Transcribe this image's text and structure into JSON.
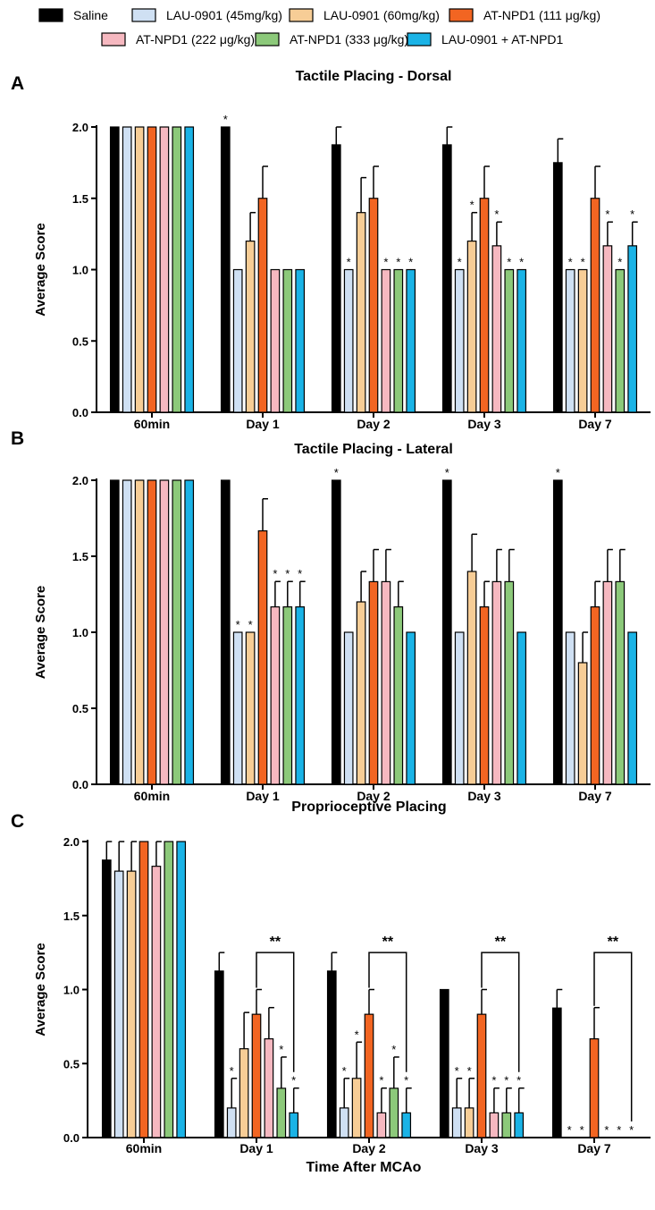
{
  "legend": {
    "entries": [
      {
        "label": "Saline",
        "color": "#000000"
      },
      {
        "label": "LAU-0901 (45mg/kg)",
        "color": "#cfe0f3"
      },
      {
        "label": "LAU-0901 (60mg/kg)",
        "color": "#f7cd96"
      },
      {
        "label": "AT-NPD1 (111 μg/kg)",
        "color": "#f26522"
      },
      {
        "label": "AT-NPD1 (222 μg/kg)",
        "color": "#f6b8c0"
      },
      {
        "label": "AT-NPD1 (333 μg/kg)",
        "color": "#8cc97a"
      },
      {
        "label": "LAU-0901 + AT-NPD1",
        "color": "#1ab3e6"
      }
    ]
  },
  "x_axis_title": "Time After MCAo",
  "chart_data": [
    {
      "type": "bar",
      "panel": "A",
      "title": "Tactile Placing - Dorsal",
      "ylabel": "Average Score",
      "xlabel": "",
      "ylim": [
        0,
        2.0
      ],
      "yticks": [
        "0.0",
        "0.5",
        "1.0",
        "1.5",
        "2.0"
      ],
      "categories": [
        "60min",
        "Day 1",
        "Day 2",
        "Day 3",
        "Day 7"
      ],
      "series": [
        {
          "name": "Saline",
          "values": [
            2.0,
            2.0,
            1.875,
            1.875,
            1.75
          ],
          "errors": [
            0,
            0,
            0.125,
            0.125,
            0.167
          ],
          "stars": [
            0,
            1,
            0,
            0,
            0
          ]
        },
        {
          "name": "LAU-0901 (45mg/kg)",
          "values": [
            2.0,
            1.0,
            1.0,
            1.0,
            1.0
          ],
          "errors": [
            0,
            0,
            0,
            0,
            0
          ],
          "stars": [
            0,
            0,
            1,
            1,
            1
          ]
        },
        {
          "name": "LAU-0901 (60mg/kg)",
          "values": [
            2.0,
            1.2,
            1.4,
            1.2,
            1.0
          ],
          "errors": [
            0,
            0.2,
            0.245,
            0.2,
            0
          ],
          "stars": [
            0,
            0,
            0,
            1,
            1
          ]
        },
        {
          "name": "AT-NPD1 (111 μg/kg)",
          "values": [
            2.0,
            1.5,
            1.5,
            1.5,
            1.5
          ],
          "errors": [
            0,
            0.224,
            0.224,
            0.224,
            0.224
          ],
          "stars": [
            0,
            0,
            0,
            0,
            0
          ]
        },
        {
          "name": "AT-NPD1 (222 μg/kg)",
          "values": [
            2.0,
            1.0,
            1.0,
            1.167,
            1.167
          ],
          "errors": [
            0,
            0,
            0,
            0.167,
            0.167
          ],
          "stars": [
            0,
            0,
            1,
            1,
            1
          ]
        },
        {
          "name": "AT-NPD1 (333 μg/kg)",
          "values": [
            2.0,
            1.0,
            1.0,
            1.0,
            1.0
          ],
          "errors": [
            0,
            0,
            0,
            0,
            0
          ],
          "stars": [
            0,
            0,
            1,
            1,
            1
          ]
        },
        {
          "name": "LAU-0901 + AT-NPD1",
          "values": [
            2.0,
            1.0,
            1.0,
            1.0,
            1.167
          ],
          "errors": [
            0,
            0,
            0,
            0,
            0.167
          ],
          "stars": [
            0,
            0,
            1,
            1,
            1
          ]
        }
      ],
      "brackets": []
    },
    {
      "type": "bar",
      "panel": "B",
      "title": "Tactile Placing - Lateral",
      "ylabel": "Average Score",
      "xlabel": "",
      "ylim": [
        0,
        2.0
      ],
      "yticks": [
        "0.0",
        "0.5",
        "1.0",
        "1.5",
        "2.0"
      ],
      "categories": [
        "60min",
        "Day 1",
        "Day 2",
        "Day 3",
        "Day 7"
      ],
      "series": [
        {
          "name": "Saline",
          "values": [
            2.0,
            2.0,
            2.0,
            2.0,
            2.0
          ],
          "errors": [
            0,
            0,
            0,
            0,
            0
          ],
          "stars": [
            0,
            0,
            1,
            1,
            1
          ]
        },
        {
          "name": "LAU-0901 (45mg/kg)",
          "values": [
            2.0,
            1.0,
            1.0,
            1.0,
            1.0
          ],
          "errors": [
            0,
            0,
            0,
            0,
            0
          ],
          "stars": [
            0,
            1,
            0,
            0,
            0
          ]
        },
        {
          "name": "LAU-0901 (60mg/kg)",
          "values": [
            2.0,
            1.0,
            1.2,
            1.4,
            0.8
          ],
          "errors": [
            0,
            0,
            0.2,
            0.245,
            0.2
          ],
          "stars": [
            0,
            1,
            0,
            0,
            0
          ]
        },
        {
          "name": "AT-NPD1 (111 μg/kg)",
          "values": [
            2.0,
            1.667,
            1.333,
            1.167,
            1.167
          ],
          "errors": [
            0,
            0.211,
            0.211,
            0.167,
            0.167
          ],
          "stars": [
            0,
            0,
            0,
            0,
            0
          ]
        },
        {
          "name": "AT-NPD1 (222 μg/kg)",
          "values": [
            2.0,
            1.167,
            1.333,
            1.333,
            1.333
          ],
          "errors": [
            0,
            0.167,
            0.211,
            0.211,
            0.211
          ],
          "stars": [
            0,
            1,
            0,
            0,
            0
          ]
        },
        {
          "name": "AT-NPD1 (333 μg/kg)",
          "values": [
            2.0,
            1.167,
            1.167,
            1.333,
            1.333
          ],
          "errors": [
            0,
            0.167,
            0.167,
            0.211,
            0.211
          ],
          "stars": [
            0,
            1,
            0,
            0,
            0
          ]
        },
        {
          "name": "LAU-0901 + AT-NPD1",
          "values": [
            2.0,
            1.167,
            1.0,
            1.0,
            1.0
          ],
          "errors": [
            0,
            0.167,
            0,
            0,
            0
          ],
          "stars": [
            0,
            1,
            0,
            0,
            0
          ]
        }
      ],
      "brackets": []
    },
    {
      "type": "bar",
      "panel": "C",
      "title": "Proprioceptive Placing",
      "ylabel": "Average Score",
      "xlabel": "Time After MCAo",
      "ylim": [
        0,
        2.0
      ],
      "yticks": [
        "0.0",
        "0.5",
        "1.0",
        "1.5",
        "2.0"
      ],
      "categories": [
        "60min",
        "Day 1",
        "Day 2",
        "Day 3",
        "Day 7"
      ],
      "series": [
        {
          "name": "Saline",
          "values": [
            1.875,
            1.125,
            1.125,
            1.0,
            0.875
          ],
          "errors": [
            0.125,
            0.125,
            0.125,
            0,
            0.125
          ],
          "stars": [
            0,
            0,
            0,
            0,
            0
          ]
        },
        {
          "name": "LAU-0901 (45mg/kg)",
          "values": [
            1.8,
            0.2,
            0.2,
            0.2,
            0.0
          ],
          "errors": [
            0.2,
            0.2,
            0.2,
            0.2,
            0
          ],
          "stars": [
            0,
            1,
            1,
            1,
            1
          ]
        },
        {
          "name": "LAU-0901 (60mg/kg)",
          "values": [
            1.8,
            0.6,
            0.4,
            0.2,
            0.0
          ],
          "errors": [
            0.2,
            0.245,
            0.245,
            0.2,
            0
          ],
          "stars": [
            0,
            0,
            1,
            1,
            1
          ]
        },
        {
          "name": "AT-NPD1 (111 μg/kg)",
          "values": [
            2.0,
            0.833,
            0.833,
            0.833,
            0.667
          ],
          "errors": [
            0,
            0.167,
            0.167,
            0.167,
            0.211
          ],
          "stars": [
            0,
            0,
            0,
            0,
            0
          ]
        },
        {
          "name": "AT-NPD1 (222 μg/kg)",
          "values": [
            1.833,
            0.667,
            0.167,
            0.167,
            0.0
          ],
          "errors": [
            0.167,
            0.211,
            0.167,
            0.167,
            0
          ],
          "stars": [
            0,
            0,
            1,
            1,
            1
          ]
        },
        {
          "name": "AT-NPD1 (333 μg/kg)",
          "values": [
            2.0,
            0.333,
            0.333,
            0.167,
            0.0
          ],
          "errors": [
            0,
            0.211,
            0.211,
            0.167,
            0
          ],
          "stars": [
            0,
            1,
            1,
            1,
            1
          ]
        },
        {
          "name": "LAU-0901 + AT-NPD1",
          "values": [
            2.0,
            0.167,
            0.167,
            0.167,
            0.0
          ],
          "errors": [
            0,
            0.167,
            0.167,
            0.167,
            0
          ],
          "stars": [
            0,
            1,
            1,
            1,
            1
          ]
        }
      ],
      "brackets": [
        {
          "category": 1,
          "from_series": 3,
          "to_series": 6,
          "at": 1.25,
          "label": "**"
        },
        {
          "category": 2,
          "from_series": 3,
          "to_series": 6,
          "at": 1.25,
          "label": "**"
        },
        {
          "category": 3,
          "from_series": 3,
          "to_series": 6,
          "at": 1.25,
          "label": "**"
        },
        {
          "category": 4,
          "from_series": 3,
          "to_series": 6,
          "at": 1.25,
          "label": "**"
        }
      ]
    }
  ]
}
